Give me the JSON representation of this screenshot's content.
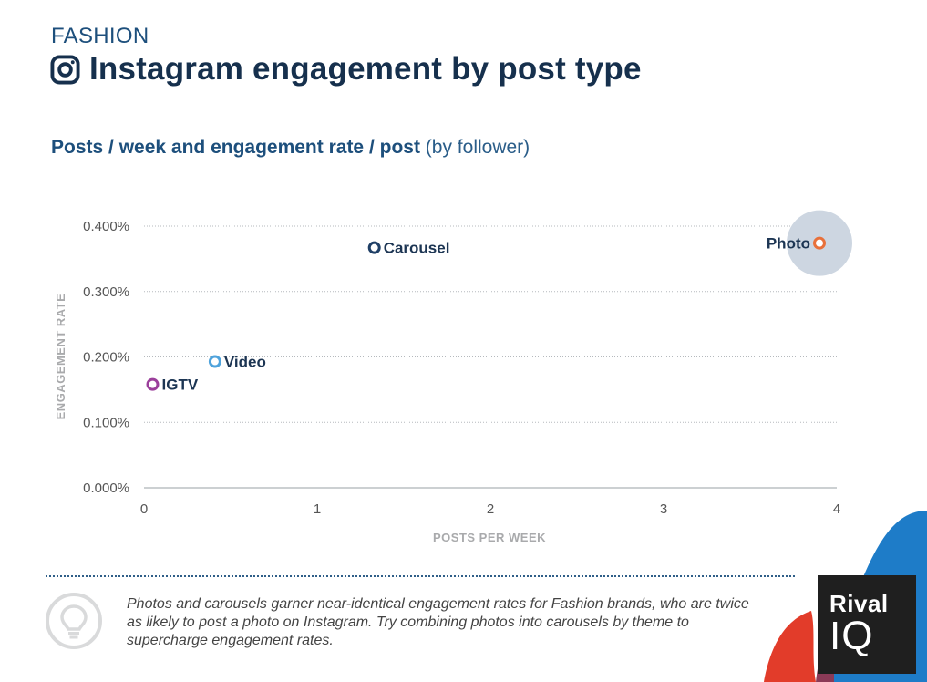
{
  "header": {
    "kicker": "FASHION",
    "title": "Instagram engagement by post type",
    "subtitle_bold": "Posts / week and engagement rate / post",
    "subtitle_light": "(by follower)"
  },
  "chart_data": {
    "type": "scatter",
    "xlabel": "POSTS PER WEEK",
    "ylabel": "ENGAGEMENT RATE",
    "xlim": [
      0,
      4
    ],
    "ylim": [
      0,
      0.4
    ],
    "x_ticks": [
      "0",
      "1",
      "2",
      "3",
      "4"
    ],
    "y_ticks": [
      "0.000%",
      "0.100%",
      "0.200%",
      "0.300%",
      "0.400%"
    ],
    "grid": "horizontal dotted",
    "points": [
      {
        "label": "IGTV",
        "x": 0.05,
        "y": 0.158,
        "color": "#9b3f9b"
      },
      {
        "label": "Video",
        "x": 0.41,
        "y": 0.193,
        "color": "#4fa3dc"
      },
      {
        "label": "Carousel",
        "x": 1.33,
        "y": 0.367,
        "color": "#1f3f66"
      },
      {
        "label": "Photo",
        "x": 3.9,
        "y": 0.374,
        "color": "#e8703a",
        "highlight": true
      }
    ]
  },
  "footer": {
    "note": "Photos and carousels garner near-identical engagement rates for Fashion brands, who are twice as likely to post a photo on Instagram. Try combining photos into carousels by theme to supercharge engagement rates.",
    "icon": "lightbulb-icon"
  },
  "logo": {
    "line1": "Rival",
    "line2": "IQ"
  },
  "colors": {
    "accent_red": "#e23c2a",
    "accent_blue": "#1e7cc8",
    "text_dark": "#16304d"
  }
}
